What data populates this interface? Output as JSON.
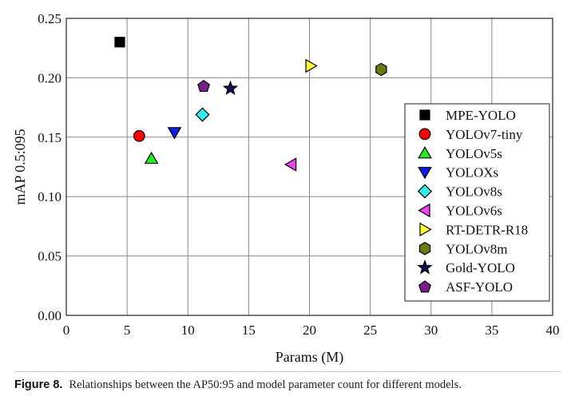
{
  "chart_data": {
    "type": "scatter",
    "xlabel": "Params (M)",
    "ylabel": "mAP 0.5:095",
    "xlim": [
      0,
      40
    ],
    "ylim": [
      0,
      0.25
    ],
    "xticks": [
      "0",
      "5",
      "10",
      "15",
      "20",
      "25",
      "30",
      "35",
      "40"
    ],
    "yticks": [
      "0.00",
      "0.05",
      "0.10",
      "0.15",
      "0.20",
      "0.25"
    ],
    "grid": true,
    "legend_position": "right",
    "series": [
      {
        "name": "MPE-YOLO",
        "marker": "square",
        "color": "#000000",
        "x": 4.4,
        "y": 0.23
      },
      {
        "name": "YOLOv7-tiny",
        "marker": "circle",
        "color": "#ff0000",
        "x": 6.0,
        "y": 0.151
      },
      {
        "name": "YOLOv5s",
        "marker": "triangle-up",
        "color": "#22ee22",
        "x": 7.0,
        "y": 0.132
      },
      {
        "name": "YOLOXs",
        "marker": "triangle-down",
        "color": "#0a1ee6",
        "x": 8.9,
        "y": 0.154
      },
      {
        "name": "YOLOv8s",
        "marker": "diamond",
        "color": "#33eeee",
        "x": 11.2,
        "y": 0.169
      },
      {
        "name": "YOLOv6s",
        "marker": "triangle-left",
        "color": "#ee44ee",
        "x": 18.5,
        "y": 0.127
      },
      {
        "name": "RT-DETR-R18",
        "marker": "triangle-right",
        "color": "#ffff33",
        "x": 20.1,
        "y": 0.21
      },
      {
        "name": "YOLOv8m",
        "marker": "hexagon",
        "color": "#6b7a10",
        "x": 25.9,
        "y": 0.207
      },
      {
        "name": "Gold-YOLO",
        "marker": "star",
        "color": "#0b1155",
        "x": 13.5,
        "y": 0.191
      },
      {
        "name": "ASF-YOLO",
        "marker": "pentagon",
        "color": "#7a1f8a",
        "x": 11.3,
        "y": 0.193
      }
    ]
  },
  "caption": {
    "label": "Figure 8.",
    "text": "Relationships between the AP50:95 and model parameter count for different models."
  }
}
